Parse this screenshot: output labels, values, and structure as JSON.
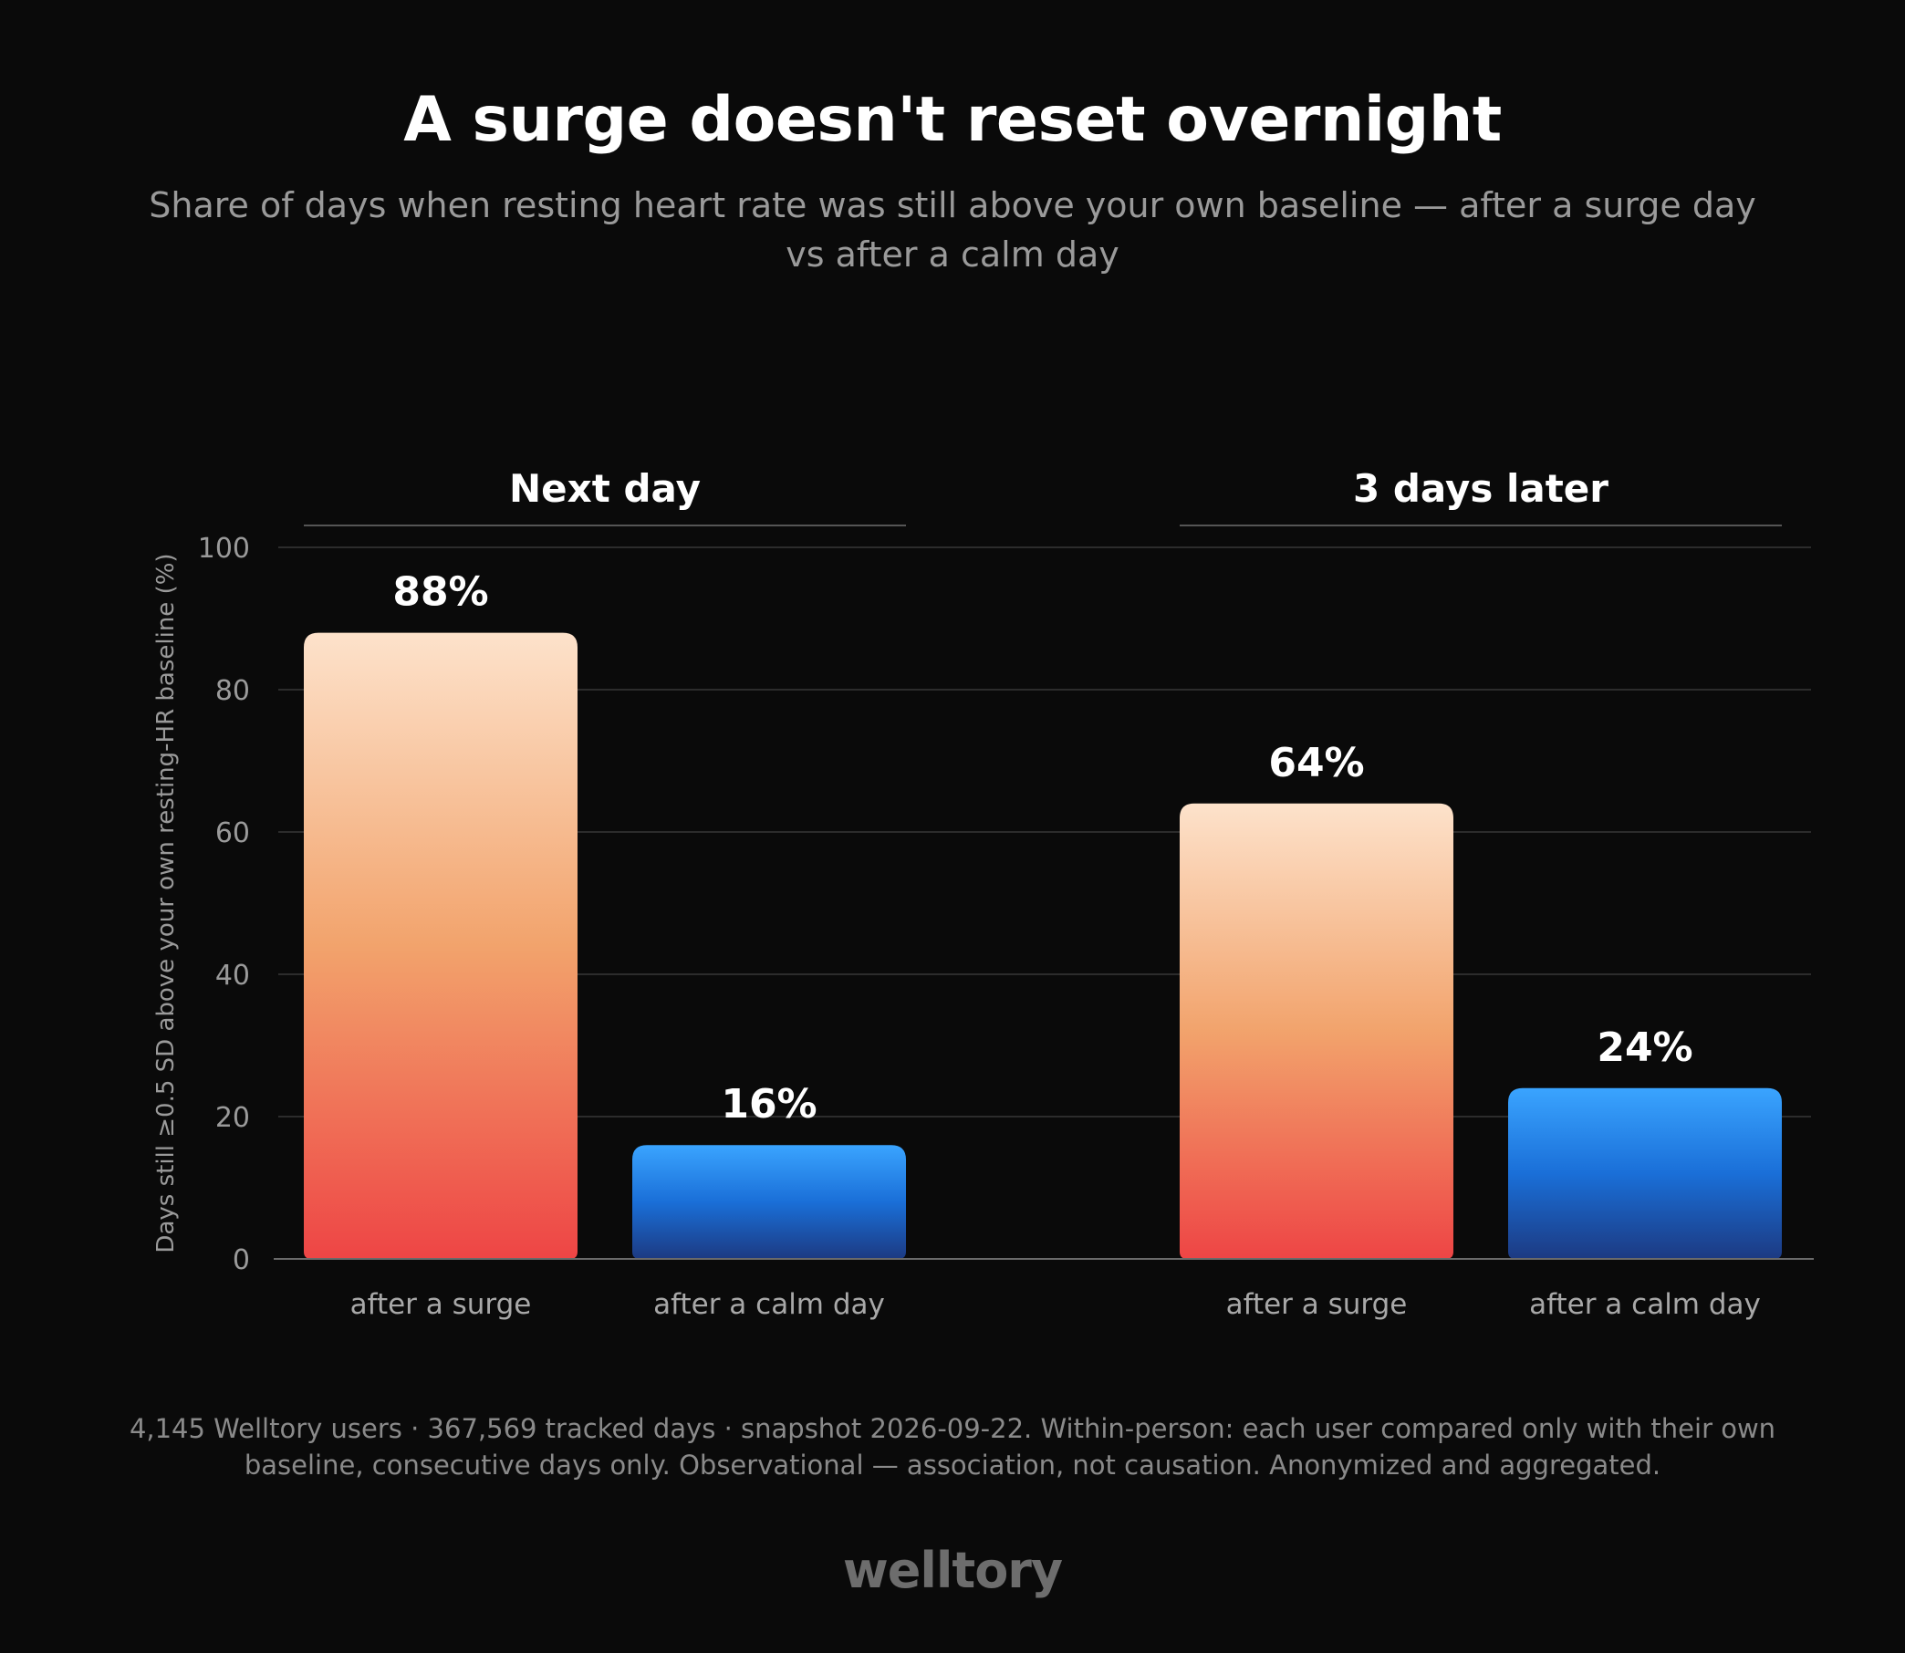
{
  "title": "A surge doesn't reset overnight",
  "subtitle": "Share of days when resting heart rate was still above your own baseline — after a surge day vs after a calm day",
  "chart_data": {
    "type": "bar",
    "ylabel": "Days still ≥0.5 SD above your own resting-HR baseline (%)",
    "ylim": [
      0,
      100
    ],
    "yticks": [
      0,
      20,
      40,
      60,
      80,
      100
    ],
    "grid": true,
    "groups": [
      {
        "name": "Next day",
        "bars": [
          {
            "label": "after a surge",
            "value": 88,
            "value_label": "88%",
            "style": "surge"
          },
          {
            "label": "after a calm day",
            "value": 16,
            "value_label": "16%",
            "style": "calm"
          }
        ]
      },
      {
        "name": "3 days later",
        "bars": [
          {
            "label": "after a surge",
            "value": 64,
            "value_label": "64%",
            "style": "surge"
          },
          {
            "label": "after a calm day",
            "value": 24,
            "value_label": "24%",
            "style": "calm"
          }
        ]
      }
    ],
    "colors": {
      "surge_top": "#fde2cb",
      "surge_mid": "#f2a36c",
      "surge_bottom": "#ee4545",
      "calm_top": "#3aa4ff",
      "calm_mid": "#1a6fd8",
      "calm_bottom": "#1c3a82"
    }
  },
  "footnote": "4,145 Welltory users · 367,569 tracked days · snapshot 2026-09-22. Within-person: each user compared only with their own baseline, consecutive days only. Observational — association, not causation. Anonymized and aggregated.",
  "brand": "welltory"
}
